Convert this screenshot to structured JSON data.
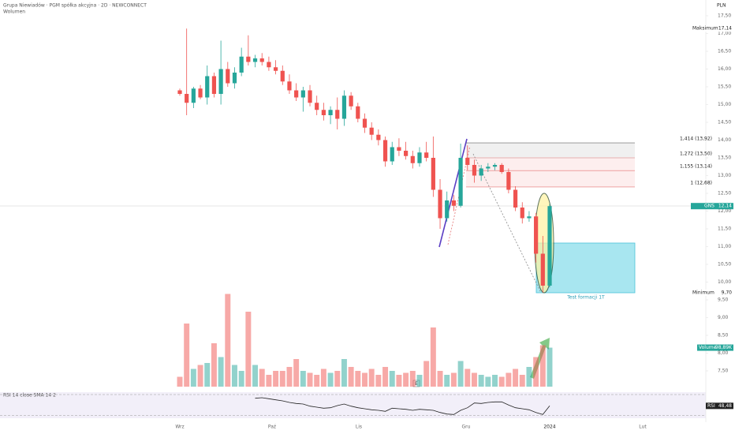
{
  "chart_data": {
    "type": "candlestick",
    "title": "Grupa Niewiadów · PGM spółka akcyjna · 2D · NEWCONNECT",
    "subtitle": "Wolumen",
    "currency": "PLN",
    "up_color": "#26a69a",
    "down_color": "#ef5350",
    "open": [
      15.4,
      15.3,
      15.05,
      15.45,
      15.2,
      15.8,
      15.3,
      16.0,
      15.6,
      15.9,
      16.35,
      16.2,
      16.3,
      16.2,
      16.05,
      15.95,
      15.65,
      15.4,
      15.2,
      15.4,
      15.05,
      14.85,
      14.7,
      14.85,
      14.6,
      15.25,
      14.95,
      14.6,
      14.35,
      14.15,
      14.0,
      13.4,
      13.8,
      13.7,
      13.55,
      13.35,
      13.65,
      13.5,
      12.6,
      11.8,
      12.3,
      12.15,
      13.5,
      13.3,
      13.0,
      13.2,
      13.25,
      13.3,
      13.1,
      12.6,
      12.1,
      11.8,
      11.85,
      10.8,
      9.9
    ],
    "high": [
      15.45,
      17.14,
      15.5,
      15.55,
      16.1,
      15.9,
      16.8,
      16.2,
      16.05,
      16.6,
      16.95,
      16.4,
      16.45,
      16.35,
      16.25,
      16.1,
      15.85,
      15.6,
      15.5,
      15.55,
      15.25,
      15.05,
      14.95,
      15.2,
      15.4,
      15.35,
      15.05,
      14.75,
      14.5,
      14.3,
      14.1,
      13.95,
      14.05,
      13.95,
      13.7,
      13.8,
      13.95,
      14.1,
      12.9,
      12.55,
      12.45,
      13.9,
      13.85,
      13.45,
      13.3,
      13.35,
      13.35,
      13.35,
      13.2,
      12.7,
      12.25,
      12.0,
      11.95,
      11.3,
      12.2
    ],
    "low": [
      15.25,
      14.7,
      14.9,
      15.15,
      15.0,
      15.2,
      15.0,
      15.5,
      15.45,
      15.8,
      16.1,
      16.05,
      16.1,
      15.95,
      15.85,
      15.55,
      15.3,
      15.1,
      14.8,
      14.95,
      14.7,
      14.55,
      14.45,
      14.3,
      14.4,
      14.85,
      14.5,
      14.2,
      14.0,
      13.85,
      13.25,
      13.3,
      13.55,
      13.45,
      13.2,
      13.25,
      13.4,
      12.4,
      11.5,
      11.7,
      12.0,
      12.1,
      13.15,
      12.8,
      12.85,
      13.1,
      13.15,
      13.05,
      12.5,
      12.0,
      11.65,
      11.7,
      10.55,
      9.7,
      9.85
    ],
    "close": [
      15.3,
      15.05,
      15.45,
      15.2,
      15.8,
      15.3,
      16.0,
      15.6,
      15.9,
      16.35,
      16.2,
      16.3,
      16.2,
      16.05,
      15.95,
      15.65,
      15.4,
      15.2,
      15.4,
      15.05,
      14.85,
      14.7,
      14.85,
      14.6,
      15.25,
      14.95,
      14.6,
      14.35,
      14.15,
      14.0,
      13.4,
      13.8,
      13.7,
      13.55,
      13.35,
      13.65,
      13.5,
      12.6,
      11.8,
      12.3,
      12.15,
      13.5,
      13.3,
      13.0,
      13.2,
      13.25,
      13.3,
      13.1,
      12.6,
      12.1,
      11.8,
      11.85,
      10.8,
      9.9,
      12.14
    ],
    "ylim": [
      7.5,
      17.5
    ],
    "yticks": [
      {
        "value": 17.5,
        "label": "17,50"
      },
      {
        "value": 17,
        "label": "17,00"
      },
      {
        "value": 16.5,
        "label": "16,50"
      },
      {
        "value": 16,
        "label": "16,00"
      },
      {
        "value": 15.5,
        "label": "15,50"
      },
      {
        "value": 15,
        "label": "15,00"
      },
      {
        "value": 14.5,
        "label": "14,50"
      },
      {
        "value": 14,
        "label": "14,00"
      },
      {
        "value": 13.5,
        "label": "13,50"
      },
      {
        "value": 13,
        "label": "13,00"
      },
      {
        "value": 12.5,
        "label": "12,50"
      },
      {
        "value": 12,
        "label": "12,00"
      },
      {
        "value": 11.5,
        "label": "11,50"
      },
      {
        "value": 11,
        "label": "11,00"
      },
      {
        "value": 10.5,
        "label": "10,50"
      },
      {
        "value": 10,
        "label": "10,00"
      },
      {
        "value": 9.5,
        "label": "9,50"
      },
      {
        "value": 9,
        "label": "9,00"
      },
      {
        "value": 8.5,
        "label": "8,50"
      },
      {
        "value": 8,
        "label": "8,00"
      },
      {
        "value": 7.5,
        "label": "7,50"
      }
    ],
    "x_labels": [
      "Wrz",
      "Paź",
      "Lis",
      "Gru",
      "2024",
      "Lut"
    ],
    "tags": [
      {
        "label": "Maksimum",
        "value": 17.14,
        "value_label": "17,14"
      },
      {
        "label": "GNS",
        "value": 12.14,
        "value_label": "12,14"
      },
      {
        "label": "Minimum",
        "value": 9.7,
        "value_label": "9,70"
      }
    ],
    "fib": {
      "values": [
        13.92,
        13.5,
        13.14,
        12.68
      ],
      "value_labels": [
        "1,414 (13,92)",
        "1,272 (13,50)",
        "1,155 (13,14)",
        "1 (12,68)"
      ]
    },
    "annotation": "Test formacji 1T",
    "earnings_marker": "E",
    "volume": {
      "label": "Volume",
      "values": [
        25,
        160,
        45,
        55,
        60,
        110,
        75,
        235,
        55,
        40,
        190,
        55,
        45,
        30,
        40,
        40,
        50,
        70,
        40,
        35,
        30,
        45,
        35,
        40,
        70,
        50,
        40,
        35,
        45,
        30,
        50,
        40,
        30,
        35,
        40,
        30,
        65,
        150,
        40,
        30,
        35,
        65,
        45,
        35,
        30,
        25,
        30,
        25,
        35,
        45,
        30,
        50,
        75,
        105,
        98.89
      ],
      "ylim": [
        0,
        240
      ],
      "last_value_label": "98,89K"
    },
    "rsi": {
      "title": "RSI 14 close SMA 14 2",
      "label": "RSI",
      "color": "#222",
      "values": [
        null,
        null,
        null,
        null,
        null,
        null,
        null,
        null,
        null,
        null,
        null,
        63,
        64,
        62,
        60,
        58,
        55,
        53,
        52,
        48,
        46,
        44,
        45,
        49,
        52,
        48,
        45,
        43,
        41,
        40,
        38,
        44,
        43,
        42,
        40,
        42,
        41,
        40,
        36,
        33,
        32,
        40,
        45,
        54,
        53,
        55,
        56,
        56,
        50,
        45,
        43,
        41,
        36,
        32,
        48.48
      ],
      "ylim": [
        10,
        85
      ],
      "bands": [
        70,
        30
      ],
      "last_value_label": "48,48"
    }
  }
}
